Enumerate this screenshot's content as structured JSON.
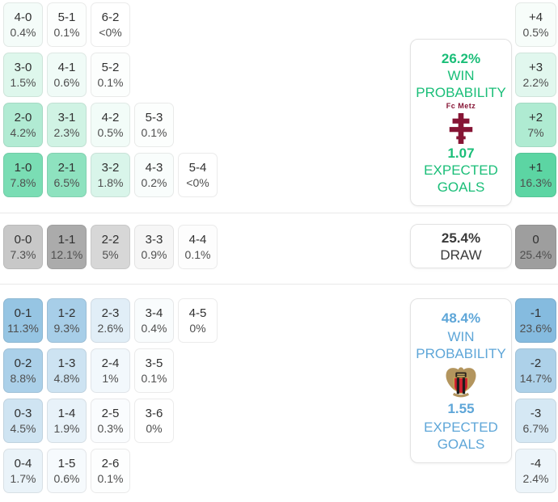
{
  "theme": {
    "shade_curve": 0.85,
    "accents": {
      "home": "#1abe78",
      "away": "#5ea6d8",
      "draw": "#3a3a3a",
      "metz": "#861434"
    },
    "divider_color": "#e9e9e9"
  },
  "icons": {
    "home_crest": "fc-metz-crest",
    "away_crest": "ogc-nice-crest"
  },
  "chart_data": {
    "type": "heatmap",
    "sections": [
      {
        "outcome": "home_win",
        "style": {
          "tile_rgb": "0,190,111",
          "grid_alpha": 0.52,
          "margin_alpha": 0.64
        },
        "rows": [
          [
            {
              "score": "4-0",
              "pct": "0.4%",
              "v": 0.4
            },
            {
              "score": "5-1",
              "pct": "0.1%",
              "v": 0.1
            },
            {
              "score": "6-2",
              "pct": "<0%",
              "v": 0
            }
          ],
          [
            {
              "score": "3-0",
              "pct": "1.5%",
              "v": 1.5
            },
            {
              "score": "4-1",
              "pct": "0.6%",
              "v": 0.6
            },
            {
              "score": "5-2",
              "pct": "0.1%",
              "v": 0.1
            }
          ],
          [
            {
              "score": "2-0",
              "pct": "4.2%",
              "v": 4.2
            },
            {
              "score": "3-1",
              "pct": "2.3%",
              "v": 2.3
            },
            {
              "score": "4-2",
              "pct": "0.5%",
              "v": 0.5
            },
            {
              "score": "5-3",
              "pct": "0.1%",
              "v": 0.1
            }
          ],
          [
            {
              "score": "1-0",
              "pct": "7.8%",
              "v": 7.8
            },
            {
              "score": "2-1",
              "pct": "6.5%",
              "v": 6.5
            },
            {
              "score": "3-2",
              "pct": "1.8%",
              "v": 1.8
            },
            {
              "score": "4-3",
              "pct": "0.2%",
              "v": 0.2
            },
            {
              "score": "5-4",
              "pct": "<0%",
              "v": 0
            }
          ]
        ],
        "margins": [
          {
            "margin": "+4",
            "pct": "0.5%",
            "v": 0.5
          },
          {
            "margin": "+3",
            "pct": "2.2%",
            "v": 2.2
          },
          {
            "margin": "+2",
            "pct": "7%",
            "v": 7
          },
          {
            "margin": "+1",
            "pct": "16.3%",
            "v": 16.3
          }
        ],
        "panel": {
          "probability": "26.2%",
          "probability_label": "WIN PROBABILITY",
          "team_name": "Fc Metz",
          "expected_goals": "1.07",
          "expected_goals_label": "EXPECTED GOALS"
        }
      },
      {
        "outcome": "draw",
        "style": {
          "tile_rgb": "0,0,0",
          "grid_alpha": 0.33,
          "margin_alpha": 0.38
        },
        "rows": [
          [
            {
              "score": "0-0",
              "pct": "7.3%",
              "v": 7.3
            },
            {
              "score": "1-1",
              "pct": "12.1%",
              "v": 12.1
            },
            {
              "score": "2-2",
              "pct": "5%",
              "v": 5
            },
            {
              "score": "3-3",
              "pct": "0.9%",
              "v": 0.9
            },
            {
              "score": "4-4",
              "pct": "0.1%",
              "v": 0.1
            }
          ]
        ],
        "margins": [
          {
            "margin": "0",
            "pct": "25.4%",
            "v": 25.4
          }
        ],
        "panel": {
          "probability": "25.4%",
          "probability_label": "DRAW"
        }
      },
      {
        "outcome": "away_win",
        "style": {
          "tile_rgb": "0,113,188",
          "grid_alpha": 0.41,
          "margin_alpha": 0.48
        },
        "rows": [
          [
            {
              "score": "0-1",
              "pct": "11.3%",
              "v": 11.3
            },
            {
              "score": "1-2",
              "pct": "9.3%",
              "v": 9.3
            },
            {
              "score": "2-3",
              "pct": "2.6%",
              "v": 2.6
            },
            {
              "score": "3-4",
              "pct": "0.4%",
              "v": 0.4
            },
            {
              "score": "4-5",
              "pct": "0%",
              "v": 0
            }
          ],
          [
            {
              "score": "0-2",
              "pct": "8.8%",
              "v": 8.8
            },
            {
              "score": "1-3",
              "pct": "4.8%",
              "v": 4.8
            },
            {
              "score": "2-4",
              "pct": "1%",
              "v": 1
            },
            {
              "score": "3-5",
              "pct": "0.1%",
              "v": 0.1
            }
          ],
          [
            {
              "score": "0-3",
              "pct": "4.5%",
              "v": 4.5
            },
            {
              "score": "1-4",
              "pct": "1.9%",
              "v": 1.9
            },
            {
              "score": "2-5",
              "pct": "0.3%",
              "v": 0.3
            },
            {
              "score": "3-6",
              "pct": "0%",
              "v": 0
            }
          ],
          [
            {
              "score": "0-4",
              "pct": "1.7%",
              "v": 1.7
            },
            {
              "score": "1-5",
              "pct": "0.6%",
              "v": 0.6
            },
            {
              "score": "2-6",
              "pct": "0.1%",
              "v": 0.1
            }
          ]
        ],
        "margins": [
          {
            "margin": "-1",
            "pct": "23.6%",
            "v": 23.6
          },
          {
            "margin": "-2",
            "pct": "14.7%",
            "v": 14.7
          },
          {
            "margin": "-3",
            "pct": "6.7%",
            "v": 6.7
          },
          {
            "margin": "-4",
            "pct": "2.4%",
            "v": 2.4
          }
        ],
        "panel": {
          "probability": "48.4%",
          "probability_label": "WIN PROBABILITY",
          "expected_goals": "1.55",
          "expected_goals_label": "EXPECTED GOALS"
        }
      }
    ]
  }
}
